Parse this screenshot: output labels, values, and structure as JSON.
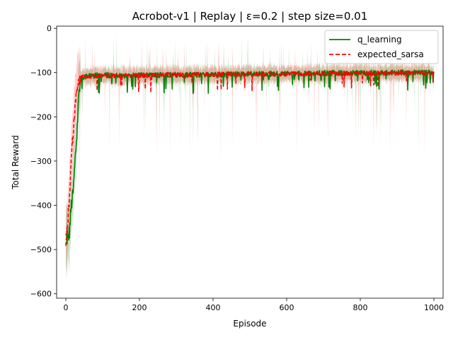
{
  "chart_data": {
    "type": "line",
    "title": "Acrobot-v1 | Replay | ε=0.2 | step size=0.01",
    "xlabel": "Episode",
    "ylabel": "Total Reward",
    "xlim": [
      -25,
      1025
    ],
    "ylim": [
      -610,
      5
    ],
    "xticks": [
      0,
      200,
      400,
      600,
      800,
      1000
    ],
    "yticks": [
      0,
      -100,
      -200,
      -300,
      -400,
      -500,
      -600
    ],
    "xtick_labels": [
      "0",
      "200",
      "400",
      "600",
      "800",
      "1000"
    ],
    "ytick_labels": [
      "0",
      "−100",
      "−200",
      "−300",
      "−400",
      "−500",
      "−600"
    ],
    "legend_position": "top-right",
    "grid": false,
    "series": [
      {
        "name": "q_learning",
        "color": "#008000",
        "style": "solid",
        "band": "std shaded",
        "anchors": [
          [
            0,
            -470
          ],
          [
            5,
            -480
          ],
          [
            10,
            -460
          ],
          [
            15,
            -400
          ],
          [
            20,
            -370
          ],
          [
            25,
            -300
          ],
          [
            30,
            -240
          ],
          [
            35,
            -150
          ],
          [
            40,
            -120
          ],
          [
            50,
            -110
          ],
          [
            75,
            -107
          ],
          [
            100,
            -105
          ],
          [
            150,
            -108
          ],
          [
            200,
            -106
          ],
          [
            300,
            -105
          ],
          [
            400,
            -105
          ],
          [
            500,
            -103
          ],
          [
            600,
            -103
          ],
          [
            700,
            -101
          ],
          [
            800,
            -101
          ],
          [
            900,
            -100
          ],
          [
            1000,
            -100
          ]
        ]
      },
      {
        "name": "expected_sarsa",
        "color": "#ff0000",
        "style": "dashed",
        "band": "std shaded",
        "anchors": [
          [
            0,
            -490
          ],
          [
            5,
            -440
          ],
          [
            10,
            -380
          ],
          [
            15,
            -300
          ],
          [
            20,
            -230
          ],
          [
            25,
            -180
          ],
          [
            30,
            -140
          ],
          [
            35,
            -115
          ],
          [
            40,
            -110
          ],
          [
            50,
            -108
          ],
          [
            75,
            -108
          ],
          [
            100,
            -106
          ],
          [
            150,
            -107
          ],
          [
            200,
            -106
          ],
          [
            300,
            -105
          ],
          [
            400,
            -104
          ],
          [
            500,
            -104
          ],
          [
            600,
            -103
          ],
          [
            700,
            -102
          ],
          [
            800,
            -101
          ],
          [
            900,
            -101
          ],
          [
            1000,
            -101
          ]
        ]
      }
    ]
  }
}
